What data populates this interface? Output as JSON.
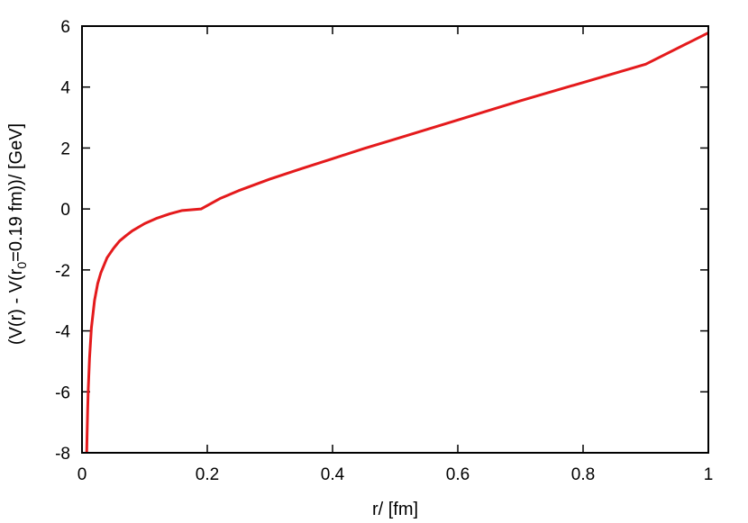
{
  "chart_data": {
    "type": "line",
    "xlabel": "r/ [fm]",
    "ylabel": {
      "pre": "(V(r) - V(r",
      "sub": "0",
      "post": "=0.19 fm))/ [GeV]"
    },
    "xlim": [
      0,
      1
    ],
    "ylim": [
      -8,
      6
    ],
    "xticks": [
      0,
      0.2,
      0.4,
      0.6,
      0.8,
      1
    ],
    "xtick_labels": [
      "0",
      "0.2",
      "0.4",
      "0.6",
      "0.8",
      "1"
    ],
    "yticks": [
      -8,
      -6,
      -4,
      -2,
      0,
      2,
      4,
      6
    ],
    "ytick_labels": [
      "-8",
      "-6",
      "-4",
      "-2",
      "0",
      "2",
      "4",
      "6"
    ],
    "grid": false,
    "series": [
      {
        "color": "#e41a1c",
        "x": [
          0.0075,
          0.008,
          0.009,
          0.01,
          0.012,
          0.015,
          0.02,
          0.025,
          0.03,
          0.04,
          0.05,
          0.06,
          0.07,
          0.08,
          0.1,
          0.12,
          0.14,
          0.16,
          0.19,
          0.22,
          0.25,
          0.3,
          0.35,
          0.4,
          0.45,
          0.5,
          0.6,
          0.7,
          0.8,
          0.9,
          1.0
        ],
        "y": [
          -8.0,
          -7.5,
          -6.6,
          -5.9,
          -4.9,
          -3.9,
          -3.0,
          -2.45,
          -2.1,
          -1.6,
          -1.3,
          -1.05,
          -0.88,
          -0.72,
          -0.48,
          -0.3,
          -0.16,
          -0.05,
          0.0,
          0.34,
          0.6,
          0.98,
          1.32,
          1.65,
          1.98,
          2.29,
          2.92,
          3.55,
          4.15,
          4.75,
          5.78
        ]
      }
    ]
  }
}
